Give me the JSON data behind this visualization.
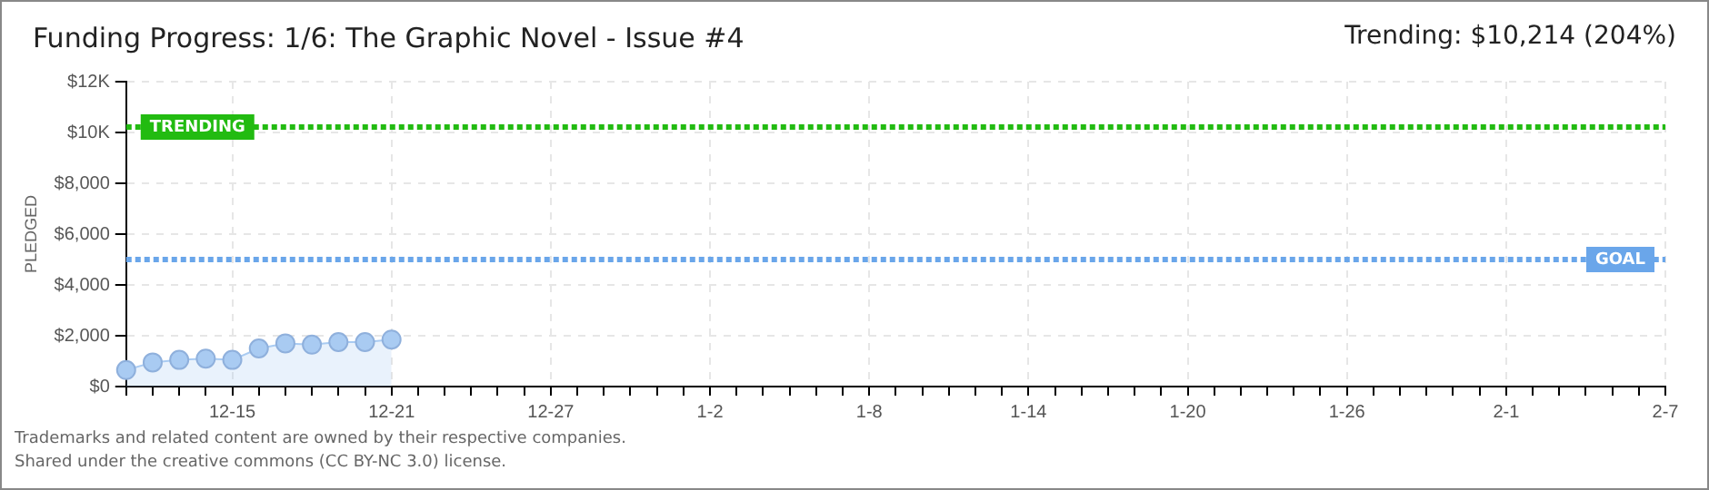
{
  "chart_data": {
    "type": "area",
    "title": "Funding Progress: 1/6: The Graphic Novel - Issue #4",
    "subtitle": "Trending: $10,214 (204%)",
    "ylabel": "PLEDGED",
    "categories": [
      null,
      null,
      null,
      null,
      "12-15",
      null,
      null,
      null,
      null,
      null,
      "12-21",
      null,
      null,
      null,
      null,
      null,
      "12-27",
      null,
      null,
      null,
      null,
      null,
      "1-2",
      null,
      null,
      null,
      null,
      null,
      "1-8",
      null,
      null,
      null,
      null,
      null,
      "1-14",
      null,
      null,
      null,
      null,
      null,
      "1-20",
      null,
      null,
      null,
      null,
      null,
      "1-26",
      null,
      null,
      null,
      null,
      null,
      "2-1",
      null,
      null,
      null,
      null,
      null,
      "2-7"
    ],
    "series": [
      {
        "color": "#a9cbf2",
        "values": [
          650,
          950,
          1050,
          1100,
          1050,
          1500,
          1700,
          1650,
          1750,
          1750,
          1850,
          null,
          null,
          null,
          null,
          null,
          null,
          null,
          null,
          null,
          null,
          null,
          null,
          null,
          null,
          null,
          null,
          null,
          null,
          null,
          null,
          null,
          null,
          null,
          null,
          null,
          null,
          null,
          null,
          null,
          null,
          null,
          null,
          null,
          null,
          null,
          null,
          null,
          null,
          null,
          null,
          null,
          null,
          null,
          null,
          null,
          null,
          null,
          null
        ]
      }
    ],
    "ylim": [
      0,
      12000
    ],
    "yticks": [
      {
        "value": 0,
        "label": "$0"
      },
      {
        "value": 2000,
        "label": "$2,000"
      },
      {
        "value": 4000,
        "label": "$4,000"
      },
      {
        "value": 6000,
        "label": "$6,000"
      },
      {
        "value": 8000,
        "label": "$8,000"
      },
      {
        "value": 10000,
        "label": "$10K"
      },
      {
        "value": 12000,
        "label": "$12K"
      }
    ],
    "ref_lines": [
      {
        "axis": "y",
        "value": 10214,
        "label": "TRENDING",
        "color": "#22bb11",
        "line_style": "dotted"
      },
      {
        "axis": "y",
        "value": 5000,
        "label": "GOAL",
        "color": "#6aa6ea",
        "line_style": "dotted"
      }
    ],
    "grid": true,
    "legend": false,
    "marker": "circle",
    "annotations": [
      "Trademarks and related content are owned by their respective companies.",
      "Shared under the creative commons (CC BY-NC 3.0) license."
    ]
  }
}
